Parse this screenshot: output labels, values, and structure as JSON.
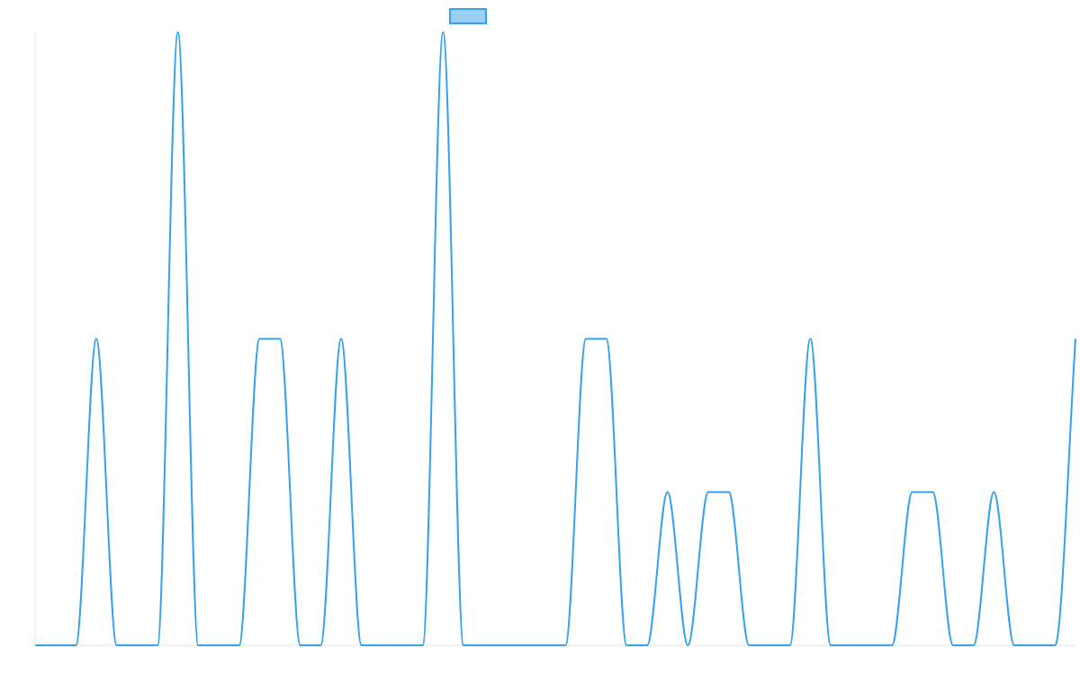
{
  "chart_data": {
    "type": "line",
    "title": "",
    "xlabel": "",
    "ylabel": "",
    "grid": false,
    "legend": {
      "position": "top-center",
      "entries": [
        {
          "label": "",
          "color": "#36a2eb",
          "fill": "#9ad0f5"
        }
      ]
    },
    "xlim": [
      0,
      51
    ],
    "ylim": [
      0,
      4
    ],
    "series": [
      {
        "color": "#36a2eb",
        "x": [
          0,
          1,
          2,
          3,
          4,
          5,
          6,
          7,
          8,
          9,
          10,
          11,
          12,
          13,
          14,
          15,
          16,
          17,
          18,
          19,
          20,
          21,
          22,
          23,
          24,
          25,
          26,
          27,
          28,
          29,
          30,
          31,
          32,
          33,
          34,
          35,
          36,
          37,
          38,
          39,
          40,
          41,
          42,
          43,
          44,
          45,
          46,
          47,
          48,
          49,
          50,
          51
        ],
        "values": [
          0,
          0,
          0,
          2,
          0,
          0,
          0,
          4,
          0,
          0,
          0,
          2,
          2,
          0,
          0,
          2,
          0,
          0,
          0,
          0,
          4,
          0,
          0,
          0,
          0,
          0,
          0,
          2,
          2,
          0,
          0,
          1,
          0,
          1,
          1,
          0,
          0,
          0,
          2,
          0,
          0,
          0,
          0,
          1,
          1,
          0,
          0,
          1,
          0,
          0,
          0,
          2
        ]
      }
    ]
  }
}
